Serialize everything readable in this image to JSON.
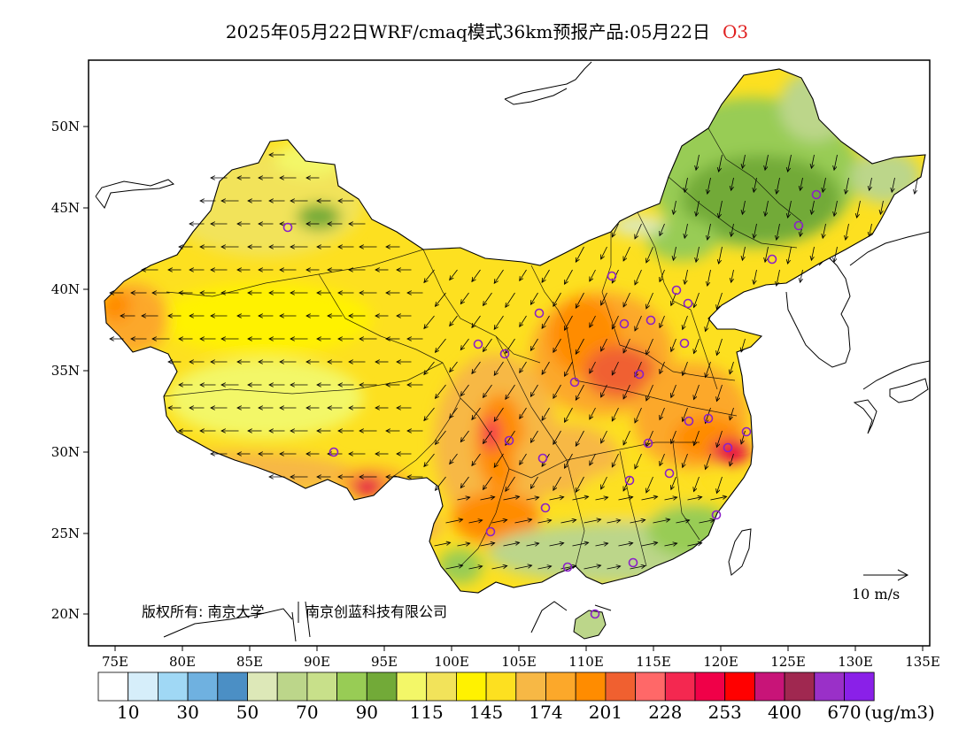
{
  "title": {
    "main": "2025年05月22日WRF/cmaq模式36km预报产品:05月22日",
    "variable": "O3"
  },
  "map": {
    "lon_labels": [
      "75E",
      "80E",
      "85E",
      "90E",
      "95E",
      "100E",
      "105E",
      "110E",
      "115E",
      "120E",
      "125E",
      "130E",
      "135E"
    ],
    "lat_labels": [
      "20N",
      "25N",
      "30N",
      "35N",
      "40N",
      "45N",
      "50N"
    ],
    "copyright": "版权所有: 南京大学",
    "company": "南京创蓝科技有限公司",
    "wind_scale_label": "10 m/s",
    "station_marker_color": "#8a20c8",
    "low_color": "#78b44e",
    "mid_color": "#ffe010",
    "high_color": "#ff8c28",
    "peak_color": "#e60046"
  },
  "legend": {
    "colors": [
      "#ffffff",
      "#d6eefa",
      "#a0d8f5",
      "#6fb1e0",
      "#4b8fc5",
      "#dde8b8",
      "#bcd68a",
      "#c8e08a",
      "#98cc55",
      "#72aa38",
      "#f3f768",
      "#f2e35a",
      "#fff200",
      "#fde020",
      "#f7b845",
      "#fca82a",
      "#ff8c00",
      "#f06030",
      "#ff6868",
      "#f42850",
      "#f00048",
      "#ff0000",
      "#c81478",
      "#a02850",
      "#9a30c8",
      "#8a20e8"
    ],
    "labels": [
      "10",
      "30",
      "50",
      "70",
      "90",
      "115",
      "145",
      "174",
      "201",
      "228",
      "253",
      "400",
      "670"
    ],
    "unit": "(ug/m3)"
  }
}
